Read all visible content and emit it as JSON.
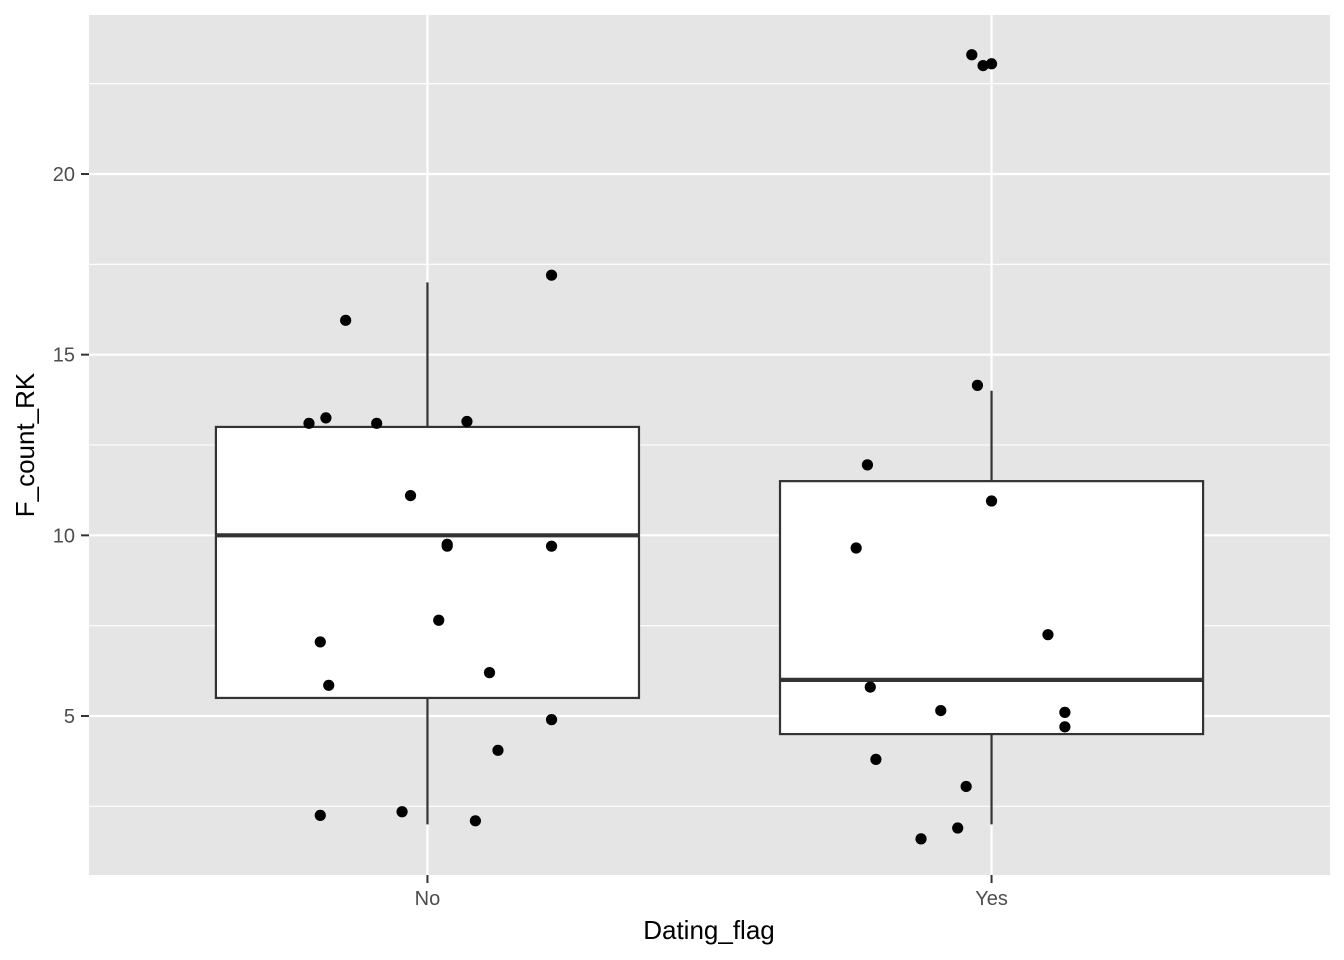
{
  "chart_data": {
    "type": "boxplot",
    "title": "",
    "xlabel": "Dating_flag",
    "ylabel": "F_count_RK",
    "categories": [
      "No",
      "Yes"
    ],
    "ylim": [
      0.6,
      24.4
    ],
    "yticks": [
      5,
      10,
      15,
      20
    ],
    "grid": true,
    "boxes": [
      {
        "category": "No",
        "whisker_low": 2,
        "q1": 5.5,
        "median": 10,
        "q3": 13,
        "whisker_high": 17
      },
      {
        "category": "Yes",
        "whisker_low": 2,
        "q1": 4.5,
        "median": 6,
        "q3": 11.5,
        "whisker_high": 14
      }
    ],
    "points": [
      {
        "category": "No",
        "jitter": -0.21,
        "y": 13.1
      },
      {
        "category": "No",
        "jitter": -0.18,
        "y": 13.25
      },
      {
        "category": "No",
        "jitter": -0.145,
        "y": 15.95
      },
      {
        "category": "No",
        "jitter": -0.09,
        "y": 13.1
      },
      {
        "category": "No",
        "jitter": 0.07,
        "y": 13.15
      },
      {
        "category": "No",
        "jitter": 0.22,
        "y": 17.2
      },
      {
        "category": "No",
        "jitter": -0.03,
        "y": 11.1
      },
      {
        "category": "No",
        "jitter": 0.035,
        "y": 9.75
      },
      {
        "category": "No",
        "jitter": 0.035,
        "y": 9.7
      },
      {
        "category": "No",
        "jitter": 0.22,
        "y": 9.7
      },
      {
        "category": "No",
        "jitter": -0.19,
        "y": 7.05
      },
      {
        "category": "No",
        "jitter": 0.02,
        "y": 7.65
      },
      {
        "category": "No",
        "jitter": -0.175,
        "y": 5.85
      },
      {
        "category": "No",
        "jitter": 0.11,
        "y": 6.2
      },
      {
        "category": "No",
        "jitter": 0.22,
        "y": 4.9
      },
      {
        "category": "No",
        "jitter": 0.125,
        "y": 4.05
      },
      {
        "category": "No",
        "jitter": -0.19,
        "y": 2.25
      },
      {
        "category": "No",
        "jitter": -0.045,
        "y": 2.35
      },
      {
        "category": "No",
        "jitter": 0.085,
        "y": 2.1
      },
      {
        "category": "Yes",
        "jitter": -0.035,
        "y": 23.3
      },
      {
        "category": "Yes",
        "jitter": -0.015,
        "y": 23.0
      },
      {
        "category": "Yes",
        "jitter": 0.0,
        "y": 23.05
      },
      {
        "category": "Yes",
        "jitter": -0.025,
        "y": 14.15
      },
      {
        "category": "Yes",
        "jitter": -0.22,
        "y": 11.95
      },
      {
        "category": "Yes",
        "jitter": 0.0,
        "y": 10.95
      },
      {
        "category": "Yes",
        "jitter": -0.24,
        "y": 9.65
      },
      {
        "category": "Yes",
        "jitter": 0.1,
        "y": 7.25
      },
      {
        "category": "Yes",
        "jitter": -0.215,
        "y": 5.8
      },
      {
        "category": "Yes",
        "jitter": -0.09,
        "y": 5.15
      },
      {
        "category": "Yes",
        "jitter": 0.13,
        "y": 5.1
      },
      {
        "category": "Yes",
        "jitter": 0.13,
        "y": 4.7
      },
      {
        "category": "Yes",
        "jitter": -0.205,
        "y": 3.8
      },
      {
        "category": "Yes",
        "jitter": -0.045,
        "y": 3.05
      },
      {
        "category": "Yes",
        "jitter": -0.06,
        "y": 1.9
      },
      {
        "category": "Yes",
        "jitter": -0.125,
        "y": 1.6
      }
    ],
    "colors": {
      "panel": "#e5e5e5",
      "grid": "#ffffff",
      "box_fill": "#ffffff",
      "box_line": "#333333",
      "point": "#000000",
      "tick_text": "#4d4d4d"
    }
  }
}
